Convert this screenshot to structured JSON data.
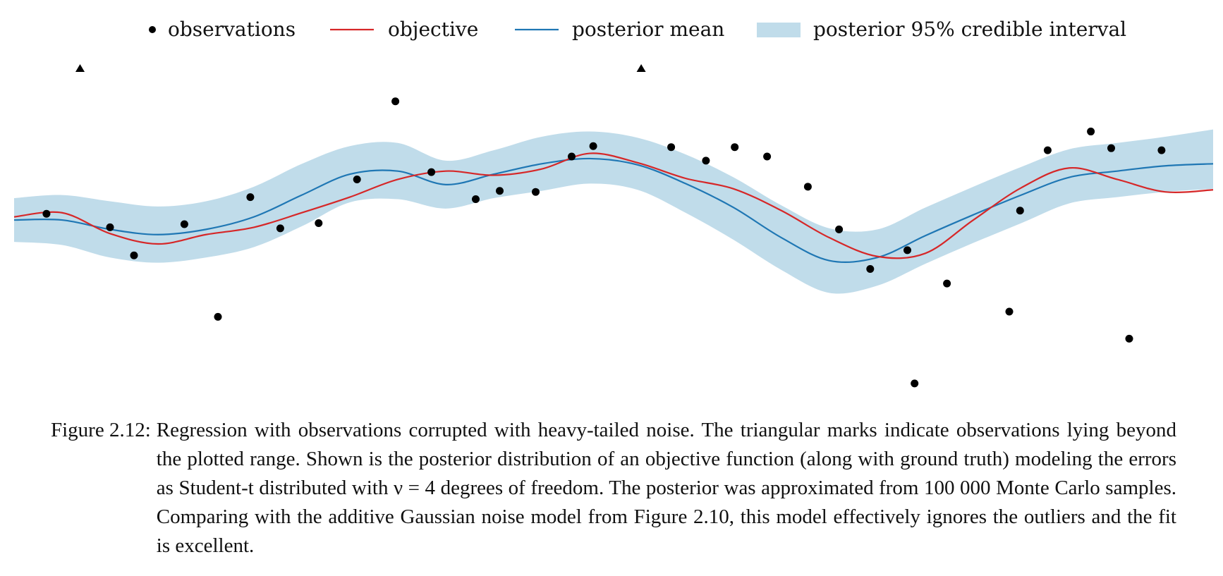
{
  "figure": {
    "legend": {
      "observations": "observations",
      "objective": "objective",
      "posterior_mean": "posterior mean",
      "interval": "posterior 95% credible interval"
    }
  },
  "chart_data": {
    "type": "line",
    "xlim": [
      0,
      1
    ],
    "ylim": [
      -1.5,
      1.5
    ],
    "grid": false,
    "axes_visible": false,
    "legend_placement": "top-center",
    "colors": {
      "objective": "#d62728",
      "posterior_mean": "#1f77b4",
      "interval": "#c0dcea",
      "observations": "#000000"
    },
    "series": [
      {
        "name": "objective",
        "x": [
          0.0,
          0.04,
          0.08,
          0.12,
          0.16,
          0.2,
          0.24,
          0.28,
          0.32,
          0.36,
          0.4,
          0.44,
          0.48,
          0.52,
          0.56,
          0.6,
          0.64,
          0.68,
          0.72,
          0.76,
          0.8,
          0.84,
          0.88,
          0.92,
          0.96,
          1.0
        ],
        "y": [
          0.06,
          0.1,
          -0.1,
          -0.2,
          -0.11,
          -0.04,
          0.1,
          0.25,
          0.42,
          0.5,
          0.46,
          0.52,
          0.67,
          0.58,
          0.43,
          0.33,
          0.12,
          -0.14,
          -0.32,
          -0.29,
          0.03,
          0.34,
          0.53,
          0.42,
          0.3,
          0.32
        ]
      },
      {
        "name": "posterior mean",
        "x": [
          0.0,
          0.04,
          0.08,
          0.12,
          0.16,
          0.2,
          0.24,
          0.28,
          0.32,
          0.36,
          0.4,
          0.44,
          0.48,
          0.52,
          0.56,
          0.6,
          0.64,
          0.68,
          0.72,
          0.76,
          0.8,
          0.84,
          0.88,
          0.92,
          0.96,
          1.0
        ],
        "y": [
          0.03,
          0.03,
          -0.06,
          -0.11,
          -0.06,
          0.06,
          0.27,
          0.47,
          0.5,
          0.37,
          0.47,
          0.57,
          0.62,
          0.56,
          0.38,
          0.15,
          -0.14,
          -0.36,
          -0.33,
          -0.12,
          0.08,
          0.27,
          0.44,
          0.5,
          0.55,
          0.57
        ]
      },
      {
        "name": "posterior 95% credible interval",
        "x": [
          0.0,
          0.04,
          0.08,
          0.12,
          0.16,
          0.2,
          0.24,
          0.28,
          0.32,
          0.36,
          0.4,
          0.44,
          0.48,
          0.52,
          0.56,
          0.6,
          0.64,
          0.68,
          0.72,
          0.76,
          0.8,
          0.84,
          0.88,
          0.92,
          0.96,
          1.0
        ],
        "lower": [
          -0.18,
          -0.21,
          -0.33,
          -0.38,
          -0.33,
          -0.23,
          -0.03,
          0.2,
          0.23,
          0.14,
          0.24,
          0.31,
          0.38,
          0.32,
          0.1,
          -0.16,
          -0.45,
          -0.67,
          -0.6,
          -0.39,
          -0.19,
          0.0,
          0.19,
          0.25,
          0.3,
          0.33
        ],
        "upper": [
          0.24,
          0.27,
          0.21,
          0.16,
          0.21,
          0.35,
          0.57,
          0.74,
          0.77,
          0.6,
          0.7,
          0.83,
          0.88,
          0.82,
          0.66,
          0.44,
          0.17,
          -0.05,
          -0.06,
          0.15,
          0.35,
          0.54,
          0.71,
          0.77,
          0.83,
          0.9
        ]
      }
    ],
    "observations": {
      "x": [
        0.027,
        0.08,
        0.1,
        0.142,
        0.17,
        0.197,
        0.222,
        0.254,
        0.286,
        0.318,
        0.348,
        0.385,
        0.405,
        0.435,
        0.465,
        0.483,
        0.548,
        0.577,
        0.601,
        0.628,
        0.662,
        0.688,
        0.714,
        0.745,
        0.751,
        0.778,
        0.83,
        0.839,
        0.862,
        0.898,
        0.915,
        0.93,
        0.957
      ],
      "y": [
        0.09,
        -0.04,
        -0.31,
        -0.01,
        -0.9,
        0.25,
        -0.05,
        0.0,
        0.42,
        1.17,
        0.49,
        0.23,
        0.31,
        0.3,
        0.64,
        0.74,
        0.73,
        0.6,
        0.73,
        0.64,
        0.35,
        -0.06,
        -0.44,
        -0.26,
        -1.54,
        -0.58,
        -0.85,
        0.12,
        0.7,
        0.88,
        0.72,
        -1.11,
        0.7
      ]
    },
    "out_of_range_observations_x": [
      0.055,
      0.523
    ]
  },
  "caption": {
    "label": "Figure 2.12:",
    "text": "Regression with observations corrupted with heavy-tailed noise. The triangular marks indicate observations lying beyond the plotted range. Shown is the posterior distribution of an objective function (along with ground truth) modeling the errors as Student-t distributed with ν = 4 degrees of freedom. The posterior was approximated from 100 000 Monte Carlo samples. Comparing with the additive Gaussian noise model from Figure 2.10, this model effectively ignores the outliers and the fit is excellent."
  }
}
